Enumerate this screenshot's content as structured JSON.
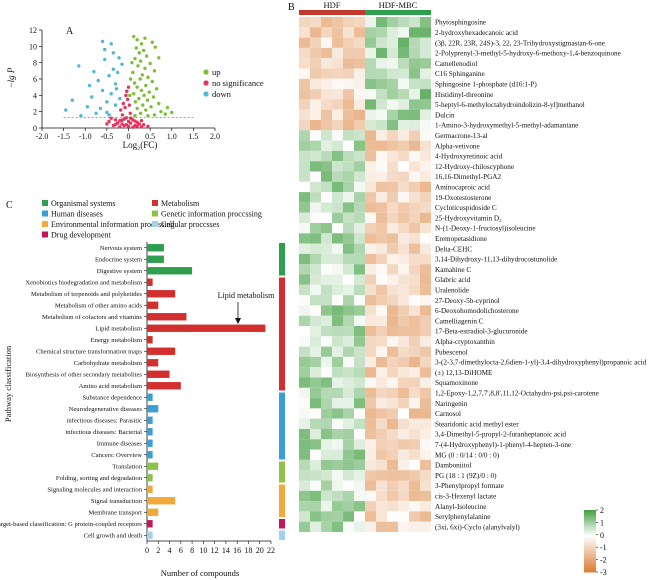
{
  "chart_data": [
    {
      "type": "scatter",
      "panel_label": "A",
      "xlabel": "Log₂(FC)",
      "ylabel": "−lg P",
      "xlim": [
        -2.0,
        2.0
      ],
      "ylim": [
        0,
        12
      ],
      "x_ticks": [
        -2.0,
        -1.5,
        -1.0,
        -0.5,
        0,
        0.5,
        1.0,
        1.5,
        2.0
      ],
      "x_tick_labels": [
        "-2.0",
        "-1.5",
        "-1.0",
        "-0.5",
        "0",
        "0.5",
        "1.0",
        "1.5",
        "2.0"
      ],
      "y_ticks": [
        0,
        2,
        4,
        6,
        8,
        10,
        12
      ],
      "threshold_line_y": 1.3,
      "legend": [
        {
          "label": "up",
          "color": "#7cbf35"
        },
        {
          "label": "no significance",
          "color": "#e8335c"
        },
        {
          "label": "down",
          "color": "#4fb6d8"
        }
      ],
      "series": [
        {
          "name": "up",
          "color": "#7cbf35",
          "points": [
            [
              0.12,
              11.2
            ],
            [
              0.2,
              10.8
            ],
            [
              0.3,
              10.3
            ],
            [
              0.18,
              9.8
            ],
            [
              0.35,
              9.5
            ],
            [
              0.25,
              9.2
            ],
            [
              0.42,
              8.8
            ],
            [
              0.15,
              8.5
            ],
            [
              0.28,
              8.2
            ],
            [
              0.5,
              7.9
            ],
            [
              0.22,
              7.6
            ],
            [
              0.38,
              7.3
            ],
            [
              0.6,
              7.0
            ],
            [
              0.1,
              6.8
            ],
            [
              0.32,
              6.5
            ],
            [
              0.45,
              6.2
            ],
            [
              0.27,
              6.0
            ],
            [
              0.55,
              5.7
            ],
            [
              0.14,
              5.5
            ],
            [
              0.4,
              5.2
            ],
            [
              0.2,
              5.0
            ],
            [
              0.65,
              4.8
            ],
            [
              0.3,
              4.6
            ],
            [
              0.48,
              4.4
            ],
            [
              0.12,
              4.2
            ],
            [
              0.36,
              4.0
            ],
            [
              0.58,
              3.8
            ],
            [
              0.24,
              3.6
            ],
            [
              0.44,
              3.4
            ],
            [
              0.16,
              3.2
            ],
            [
              0.7,
              3.0
            ],
            [
              0.33,
              2.8
            ],
            [
              0.52,
              2.6
            ],
            [
              0.2,
              2.4
            ],
            [
              0.4,
              2.2
            ],
            [
              0.75,
              2.0
            ],
            [
              0.28,
              1.8
            ],
            [
              0.6,
              1.6
            ],
            [
              0.15,
              1.5
            ],
            [
              0.9,
              2.5
            ],
            [
              0.85,
              1.7
            ],
            [
              0.62,
              9.9
            ],
            [
              0.7,
              8.6
            ],
            [
              0.55,
              10.5
            ],
            [
              0.08,
              8.0
            ],
            [
              0.05,
              6.0
            ],
            [
              0.03,
              4.0
            ],
            [
              0.45,
              1.5
            ],
            [
              1.0,
              1.9
            ],
            [
              0.38,
              11.0
            ]
          ]
        },
        {
          "name": "no significance",
          "color": "#e8335c",
          "points": [
            [
              -0.4,
              1.2
            ],
            [
              -0.3,
              1.0
            ],
            [
              -0.2,
              0.9
            ],
            [
              -0.1,
              1.1
            ],
            [
              0.0,
              0.8
            ],
            [
              0.1,
              1.0
            ],
            [
              0.2,
              0.7
            ],
            [
              0.3,
              0.9
            ],
            [
              -0.25,
              0.6
            ],
            [
              -0.15,
              0.5
            ],
            [
              -0.05,
              0.4
            ],
            [
              0.05,
              0.6
            ],
            [
              0.15,
              0.3
            ],
            [
              0.25,
              0.5
            ],
            [
              -0.35,
              0.3
            ],
            [
              -0.45,
              0.8
            ],
            [
              0.35,
              0.4
            ],
            [
              -0.5,
              0.5
            ],
            [
              0.45,
              0.2
            ],
            [
              0.0,
              0.2
            ],
            [
              -0.1,
              0.3
            ],
            [
              0.1,
              0.1
            ],
            [
              -0.2,
              0.15
            ],
            [
              0.2,
              0.25
            ],
            [
              -0.3,
              0.45
            ],
            [
              0.05,
              1.2
            ],
            [
              -0.05,
              1.25
            ],
            [
              0.15,
              0.85
            ],
            [
              -0.15,
              0.95
            ],
            [
              0.3,
              0.15
            ],
            [
              -0.08,
              2.5
            ],
            [
              -0.12,
              3.0
            ],
            [
              -0.02,
              3.5
            ],
            [
              -0.18,
              2.2
            ],
            [
              0.02,
              2.8
            ],
            [
              -0.06,
              4.0
            ],
            [
              0.04,
              1.8
            ],
            [
              -0.14,
              1.6
            ],
            [
              0.0,
              5.0
            ],
            [
              -0.04,
              4.5
            ]
          ]
        },
        {
          "name": "down",
          "color": "#4fb6d8",
          "points": [
            [
              -1.15,
              7.6
            ],
            [
              -0.8,
              6.9
            ],
            [
              -0.55,
              8.4
            ],
            [
              -0.7,
              5.8
            ],
            [
              -0.45,
              6.4
            ],
            [
              -0.9,
              5.2
            ],
            [
              -0.35,
              7.2
            ],
            [
              -0.6,
              4.6
            ],
            [
              -0.3,
              5.4
            ],
            [
              -1.3,
              3.4
            ],
            [
              -0.85,
              3.8
            ],
            [
              -0.5,
              3.2
            ],
            [
              -0.4,
              4.2
            ],
            [
              -0.25,
              6.8
            ],
            [
              -1.45,
              2.2
            ],
            [
              -0.95,
              2.6
            ],
            [
              -0.65,
              2.4
            ],
            [
              -0.3,
              2.8
            ],
            [
              -0.2,
              3.6
            ],
            [
              -0.75,
              1.8
            ],
            [
              -0.45,
              1.6
            ],
            [
              -1.1,
              1.5
            ],
            [
              -0.55,
              9.6
            ],
            [
              -0.35,
              9.2
            ],
            [
              -0.22,
              8.6
            ],
            [
              -0.4,
              10.3
            ],
            [
              -0.6,
              10.6
            ],
            [
              -0.28,
              4.8
            ],
            [
              -0.15,
              7.8
            ],
            [
              -0.5,
              1.9
            ]
          ]
        }
      ]
    },
    {
      "type": "heatmap",
      "panel_label": "B",
      "groups": [
        {
          "label": "HDF",
          "color": "#c0392b",
          "columns": 6
        },
        {
          "label": "HDF-MBC",
          "color": "#2e9e4f",
          "columns": 6
        }
      ],
      "colorbar": {
        "ticks": [
          2,
          1,
          0,
          -1,
          -2,
          -3
        ],
        "max_color": "#4aa34a",
        "mid_color": "#ffffff",
        "min_color": "#d9772b"
      },
      "rows": [
        {
          "label": "Phytosphingosine",
          "pattern": 1
        },
        {
          "label": "2-hydroxyhexadecanoic acid",
          "pattern": 1
        },
        {
          "label": "(3β, 22R, 23R, 24S)-3, 22, 23-Trihydroxystigmastan-6-one",
          "pattern": 1
        },
        {
          "label": "2-Polyprenyl-3-methyl-5-hydroxy-6-methoxy-1,4-benzoquinone",
          "pattern": 1
        },
        {
          "label": "Camellenodiol",
          "pattern": 1
        },
        {
          "label": "C16 Sphinganine",
          "pattern": 1
        },
        {
          "label": "Sphingosine 1-phosphate (d16:1-P)",
          "pattern": 1
        },
        {
          "label": "Histidinyl-threonine",
          "pattern": 1
        },
        {
          "label": "5-heptyl-6-methyloctahydroindolizin-8-yl]methanol",
          "pattern": 1
        },
        {
          "label": "Dulcin",
          "pattern": 1
        },
        {
          "label": "1-Amino-3-hydroxymethyl-5-methyl-adamantane",
          "pattern": 1
        },
        {
          "label": "Germacrone-13-al",
          "pattern": -1
        },
        {
          "label": "Alpha-vetivone",
          "pattern": -1
        },
        {
          "label": "4-Hydroxyretinoic acid",
          "pattern": -1
        },
        {
          "label": "12-Hydroxy-chiloscyphone",
          "pattern": -1
        },
        {
          "label": "16,16-Dimethyl-PGA2",
          "pattern": -1
        },
        {
          "label": "Aminocaproic acid",
          "pattern": -1
        },
        {
          "label": "19-Oxotestosterone",
          "pattern": -1
        },
        {
          "label": "Cycloticuspidoside C",
          "pattern": -1
        },
        {
          "label": "25-Hydroxyvitamin D₂",
          "pattern": -1
        },
        {
          "label": "N-(1-Deoxy-1-fructosyl)isoleucine",
          "pattern": -1
        },
        {
          "label": "Eremopetasidione",
          "pattern": -1
        },
        {
          "label": "Delta-CEHC",
          "pattern": -1
        },
        {
          "label": "3,14-Dihydroxy-11,13-dihydrocostunolide",
          "pattern": -1
        },
        {
          "label": "Kamahine C",
          "pattern": -1
        },
        {
          "label": "Glabric acid",
          "pattern": -1
        },
        {
          "label": "Uralenolide",
          "pattern": -1
        },
        {
          "label": "27-Deoxy-5b-cyprinol",
          "pattern": -1
        },
        {
          "label": "6-Deoxohomodolichosterone",
          "pattern": -1
        },
        {
          "label": "Camelliagenin C",
          "pattern": -1
        },
        {
          "label": "17-Beta-estradiol-3-glucuronide",
          "pattern": -1
        },
        {
          "label": "Alpha-cryptoxanthin",
          "pattern": -1
        },
        {
          "label": "Pubescenol",
          "pattern": -1
        },
        {
          "label": "3-(2-3,7-dimethylocta-2,6dien-1-yl)-3,4-dihydroxyphenyl)propanoic acid",
          "pattern": -1
        },
        {
          "label": "(±) 12,13-DiHOME",
          "pattern": -1
        },
        {
          "label": "Squamoxinone",
          "pattern": -1
        },
        {
          "label": "1,2-Epoxy-1,2,7,7',8,8',11,12-Octahydro-psi,psi-carotene",
          "pattern": -1
        },
        {
          "label": "Naringenin",
          "pattern": -1
        },
        {
          "label": "Carnosol",
          "pattern": -1
        },
        {
          "label": "Stearidonic acid methyl ester",
          "pattern": -1
        },
        {
          "label": "3,4-Dimethyl-5-propyl-2-furanheptanoic acid",
          "pattern": -1
        },
        {
          "label": "7-(4-Hydroxyphenyl)-1-phenyl-4-hepten-3-one",
          "pattern": -1
        },
        {
          "label": "MG (0 : 0/14 : 0/0 : 0)",
          "pattern": -1
        },
        {
          "label": "Damboniitol",
          "pattern": -1
        },
        {
          "label": "PG (18 : 1 (9Z)/0 : 0)",
          "pattern": -1
        },
        {
          "label": "3-Phenylpropyl formate",
          "pattern": -1
        },
        {
          "label": "cis-3-Hexenyl lactate",
          "pattern": -1
        },
        {
          "label": "Alanyl-Isoleucine",
          "pattern": -1
        },
        {
          "label": "Serylphenylalanine",
          "pattern": -1
        },
        {
          "label": "(3xi, 6xi)-Cyclo (alanylvalyl)",
          "pattern": -1
        }
      ]
    },
    {
      "type": "bar",
      "orientation": "horizontal",
      "panel_label": "C",
      "ylabel": "Pathway classification",
      "xlabel": "Number of compounds",
      "xlim": [
        0,
        22
      ],
      "x_ticks": [
        0,
        2,
        4,
        6,
        8,
        10,
        12,
        14,
        16,
        18,
        20,
        22
      ],
      "annotation": "Lipid metabolism",
      "legend": [
        {
          "label": "Organismal systems",
          "color": "#2e9e4f"
        },
        {
          "label": "Metabolism",
          "color": "#d32f2f"
        },
        {
          "label": "Human diseases",
          "color": "#3a9fd8"
        },
        {
          "label": "Genetic information proccssing",
          "color": "#8bc34a"
        },
        {
          "label": "Environmental information processing",
          "color": "#f2a93b"
        },
        {
          "label": "Drug development",
          "color": "#c2185b"
        },
        {
          "label": "Cellular proccsses",
          "color": "#9fd3ea"
        }
      ],
      "categories": [
        {
          "label": "Nervous system",
          "value": 3,
          "group": "Organismal systems"
        },
        {
          "label": "Endocrine system",
          "value": 3,
          "group": "Organismal systems"
        },
        {
          "label": "Digestive system",
          "value": 8,
          "group": "Organismal systems"
        },
        {
          "label": "Xenobiotics biodegradation and metabolism",
          "value": 1,
          "group": "Metabolism"
        },
        {
          "label": "Metabolism of terpenoids and polyketides",
          "value": 5,
          "group": "Metabolism"
        },
        {
          "label": "Metabolism of other amino acids",
          "value": 2,
          "group": "Metabolism"
        },
        {
          "label": "Metabolism of cofactors and vitamins",
          "value": 7,
          "group": "Metabolism"
        },
        {
          "label": "Lipid metabolism",
          "value": 21,
          "group": "Metabolism"
        },
        {
          "label": "Energy metabolism",
          "value": 1,
          "group": "Metabolism"
        },
        {
          "label": "Chemical structure transformation maps",
          "value": 5,
          "group": "Metabolism"
        },
        {
          "label": "Carbohydrate metabolism",
          "value": 2,
          "group": "Metabolism"
        },
        {
          "label": "Biosynthesis of other secondary metabolites",
          "value": 4,
          "group": "Metabolism"
        },
        {
          "label": "Amino acid metabolism",
          "value": 6,
          "group": "Metabolism"
        },
        {
          "label": "Substance dependence",
          "value": 1,
          "group": "Human diseases"
        },
        {
          "label": "Neurodegenerative diseases",
          "value": 2,
          "group": "Human diseases"
        },
        {
          "label": "infectious diseases: Parasitic",
          "value": 1,
          "group": "Human diseases"
        },
        {
          "label": "infectious diseases: Bacterial",
          "value": 1,
          "group": "Human diseases"
        },
        {
          "label": "Immune diseases",
          "value": 1,
          "group": "Human diseases"
        },
        {
          "label": "Cancers: Overview",
          "value": 1,
          "group": "Human diseases"
        },
        {
          "label": "Translation",
          "value": 2,
          "group": "Genetic information proccssing"
        },
        {
          "label": "Folding, sorting and degradation",
          "value": 1,
          "group": "Genetic information proccssing"
        },
        {
          "label": "Signaling molecules and interaction",
          "value": 1,
          "group": "Environmental information processing"
        },
        {
          "label": "Signal transduction",
          "value": 5,
          "group": "Environmental information processing"
        },
        {
          "label": "Membrane transport",
          "value": 2,
          "group": "Environmental information processing"
        },
        {
          "label": "Target-based classification: G protein-coupled receptors",
          "value": 1,
          "group": "Drug development"
        },
        {
          "label": "Cell growth and death",
          "value": 1,
          "group": "Cellular proccsses"
        }
      ]
    }
  ]
}
